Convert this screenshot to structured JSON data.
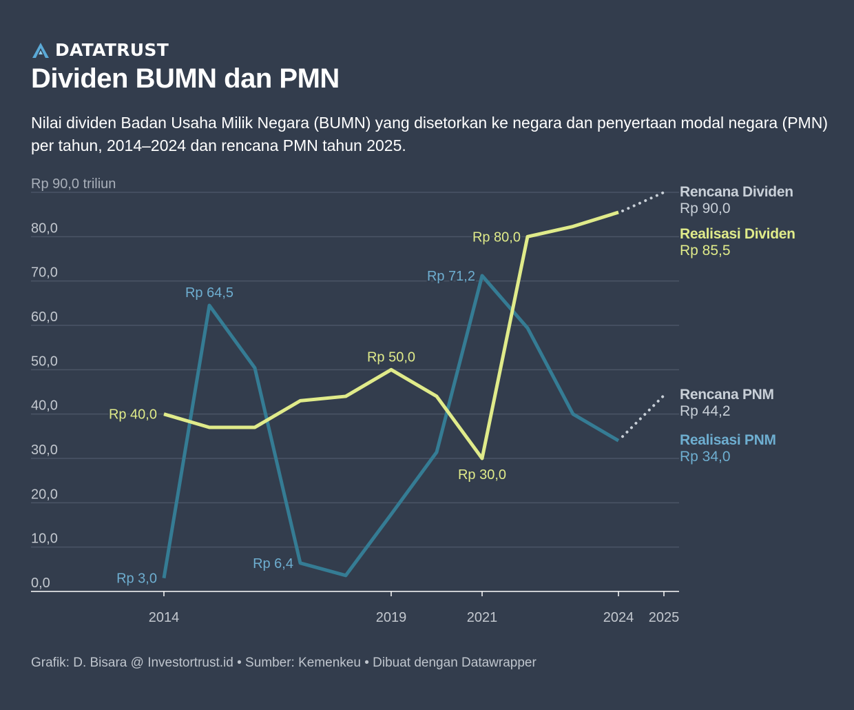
{
  "brand": {
    "name": "DATATRUST"
  },
  "header": {
    "title": "Dividen BUMN dan PMN",
    "subtitle": "Nilai dividen Badan Usaha Milik Negara (BUMN) yang disetorkan ke negara dan penyertaan modal negara (PMN) per tahun, 2014–2024 dan rencana PMN tahun 2025."
  },
  "footer": {
    "text": "Grafik: D. Bisara @ Investortrust.id • Sumber: Kemenkeu • Dibuat dengan Datawrapper"
  },
  "chart_data": {
    "type": "line",
    "x": [
      2014,
      2015,
      2016,
      2017,
      2018,
      2019,
      2020,
      2021,
      2022,
      2023,
      2024,
      2025
    ],
    "xticks": [
      "2014",
      "2019",
      "2021",
      "2024",
      "2025"
    ],
    "xlim": [
      2014,
      2025
    ],
    "ylim": [
      0,
      90
    ],
    "yticks": [
      "0,0",
      "10,0",
      "20,0",
      "30,0",
      "40,0",
      "50,0",
      "60,0",
      "70,0",
      "80,0",
      "Rp 90,0 triliun"
    ],
    "ytick_values": [
      0,
      10,
      20,
      30,
      40,
      50,
      60,
      70,
      80,
      90
    ],
    "grid": true,
    "colors": {
      "dividen": "#e0eb8a",
      "pmn": "#357c94",
      "pmn_label": "#6eaed0",
      "plan": "#c9d0d8",
      "background": "#333d4d",
      "grid": "#4b5566"
    },
    "series": [
      {
        "key": "dividen",
        "values": [
          40.0,
          37.0,
          37.0,
          43.0,
          44.0,
          50.0,
          44.0,
          30.0,
          80.0,
          82.3,
          85.5,
          null
        ]
      },
      {
        "key": "pmn",
        "values": [
          3.0,
          64.5,
          50.4,
          6.4,
          3.6,
          17.4,
          31.4,
          71.2,
          59.4,
          40.0,
          34.0,
          null
        ]
      }
    ],
    "plans": [
      {
        "key": "dividen",
        "from": [
          2024,
          85.5
        ],
        "to": [
          2025,
          90.0
        ]
      },
      {
        "key": "pmn",
        "from": [
          2024,
          34.0
        ],
        "to": [
          2025,
          44.2
        ]
      }
    ],
    "annotations": [
      {
        "series": "dividen",
        "x": 2014,
        "y": 40.0,
        "text": "Rp 40,0",
        "place": "left"
      },
      {
        "series": "dividen",
        "x": 2019,
        "y": 50.0,
        "text": "Rp 50,0",
        "place": "above"
      },
      {
        "series": "dividen",
        "x": 2021,
        "y": 30.0,
        "text": "Rp 30,0",
        "place": "below"
      },
      {
        "series": "dividen",
        "x": 2022,
        "y": 80.0,
        "text": "Rp 80,0",
        "place": "left"
      },
      {
        "series": "pmn",
        "x": 2014,
        "y": 3.0,
        "text": "Rp 3,0",
        "place": "left"
      },
      {
        "series": "pmn",
        "x": 2015,
        "y": 64.5,
        "text": "Rp 64,5",
        "place": "above"
      },
      {
        "series": "pmn",
        "x": 2017,
        "y": 6.4,
        "text": "Rp 6,4",
        "place": "left"
      },
      {
        "series": "pmn",
        "x": 2021,
        "y": 71.2,
        "text": "Rp 71,2",
        "place": "left"
      }
    ],
    "end_labels": [
      {
        "name": "Rencana Dividen",
        "value": "Rp 90,0",
        "color": "#c9d0d8"
      },
      {
        "name": "Realisasi Dividen",
        "value": "Rp 85,5",
        "color": "#e0eb8a"
      },
      {
        "name": "Rencana PNM",
        "value": "Rp 44,2",
        "color": "#c9d0d8"
      },
      {
        "name": "Realisasi PNM",
        "value": "Rp 34,0",
        "color": "#6eaed0"
      }
    ]
  }
}
